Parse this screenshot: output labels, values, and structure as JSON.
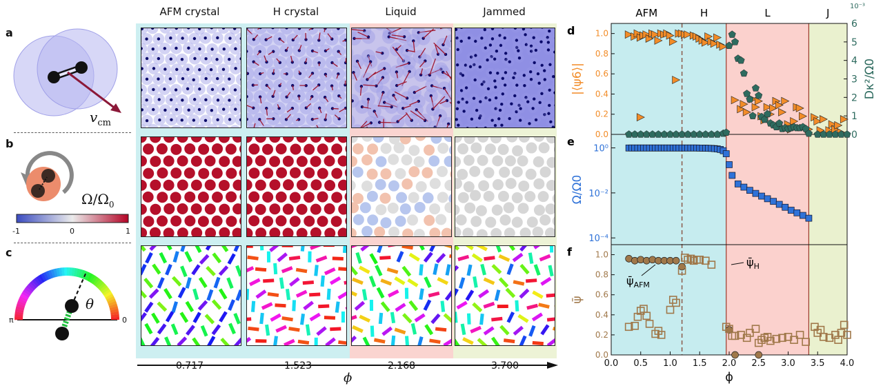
{
  "left_panels": {
    "a": {
      "letter": "a",
      "vcm_label": "v",
      "vcm_sub": "cm"
    },
    "b": {
      "letter": "b",
      "omega_label": "Ω/Ω",
      "omega_sub": "0",
      "colorbar_ticks": [
        "-1",
        "0",
        "1"
      ]
    },
    "c": {
      "letter": "c",
      "theta_label": "θ",
      "pi_label": "π",
      "zero_label": "0"
    }
  },
  "columns": [
    {
      "title": "AFM crystal",
      "phi": "0.717",
      "bg": "#cdeff1"
    },
    {
      "title": "H crystal",
      "phi": "1.523",
      "bg": "#cdeff1"
    },
    {
      "title": "Liquid",
      "phi": "2.168",
      "bg": "#fad4d0"
    },
    {
      "title": "Jammed",
      "phi": "3.700",
      "bg": "#edf3d6"
    }
  ],
  "phi_axis_label": "ϕ",
  "colors": {
    "afm_region": "#c6ecef",
    "h_region": "#c6ecef",
    "liquid_region": "#fbd1cd",
    "jammed_region": "#eaf1cf",
    "orange": "#f28c28",
    "teal": "#2e6b5f",
    "blue": "#2f72d8",
    "brown": "#a0784a",
    "dashed_line": "#8a5a4a",
    "boundary_line": "#9b3a2b"
  },
  "chart_data": [
    {
      "panel": "d",
      "type": "scatter",
      "regions": [
        "AFM",
        "H",
        "L",
        "J"
      ],
      "region_bounds": [
        [
          0,
          1.2
        ],
        [
          1.2,
          1.95
        ],
        [
          1.95,
          3.35
        ],
        [
          3.35,
          4.0
        ]
      ],
      "dashed_x": 1.2,
      "xlim": [
        0,
        4.0
      ],
      "ylim_left": [
        0,
        1.1
      ],
      "ylim_right": [
        0,
        6.0
      ],
      "ylabel_left": "|⟨ψ6⟩|",
      "ylabel_right": "Dκ²/Ω0",
      "right_exponent": "10⁻³",
      "yticks_left": [
        "0.0",
        "0.2",
        "0.4",
        "0.6",
        "0.8",
        "1.0"
      ],
      "yticks_right": [
        "0",
        "1",
        "2",
        "3",
        "4",
        "5",
        "6"
      ],
      "series": [
        {
          "marker": "triangle",
          "color": "orange",
          "points": [
            [
              0.3,
              0.99
            ],
            [
              0.4,
              0.97
            ],
            [
              0.45,
              1.0
            ],
            [
              0.5,
              0.96
            ],
            [
              0.55,
              0.98
            ],
            [
              0.6,
              0.99
            ],
            [
              0.65,
              0.95
            ],
            [
              0.7,
              1.0
            ],
            [
              0.75,
              0.99
            ],
            [
              0.8,
              0.93
            ],
            [
              0.85,
              1.0
            ],
            [
              0.9,
              0.99
            ],
            [
              0.95,
              1.0
            ],
            [
              1.0,
              0.98
            ],
            [
              1.05,
              0.92
            ],
            [
              1.15,
              1.0
            ],
            [
              1.2,
              1.0
            ],
            [
              1.25,
              0.99
            ],
            [
              1.3,
              0.99
            ],
            [
              1.4,
              0.98
            ],
            [
              1.45,
              0.97
            ],
            [
              1.5,
              0.95
            ],
            [
              1.55,
              0.93
            ],
            [
              1.6,
              0.91
            ],
            [
              1.65,
              0.97
            ],
            [
              1.7,
              0.92
            ],
            [
              1.75,
              0.9
            ],
            [
              1.8,
              0.96
            ],
            [
              1.85,
              0.89
            ],
            [
              1.9,
              0.87
            ],
            [
              1.1,
              0.54
            ],
            [
              0.5,
              0.17
            ],
            [
              2.1,
              0.34
            ],
            [
              2.2,
              0.25
            ],
            [
              2.25,
              0.3
            ],
            [
              2.3,
              0.22
            ],
            [
              2.4,
              0.35
            ],
            [
              2.45,
              0.27
            ],
            [
              2.5,
              0.33
            ],
            [
              2.55,
              0.18
            ],
            [
              2.6,
              0.14
            ],
            [
              2.65,
              0.27
            ],
            [
              2.7,
              0.2
            ],
            [
              2.75,
              0.26
            ],
            [
              2.8,
              0.33
            ],
            [
              2.85,
              0.29
            ],
            [
              2.9,
              0.22
            ],
            [
              2.95,
              0.33
            ],
            [
              3.0,
              0.1
            ],
            [
              3.05,
              0.05
            ],
            [
              3.1,
              0.13
            ],
            [
              3.15,
              0.27
            ],
            [
              3.2,
              0.26
            ],
            [
              3.25,
              0.18
            ],
            [
              3.35,
              0.05
            ],
            [
              3.45,
              0.17
            ],
            [
              3.5,
              0.13
            ],
            [
              3.55,
              0.04
            ],
            [
              3.6,
              0.15
            ],
            [
              3.7,
              0.04
            ],
            [
              3.75,
              0.1
            ],
            [
              3.8,
              0.05
            ],
            [
              3.85,
              0.09
            ],
            [
              3.9,
              0.02
            ],
            [
              3.95,
              0.15
            ]
          ]
        },
        {
          "marker": "pentagon",
          "color": "teal",
          "axis": "right",
          "points": [
            [
              0.3,
              0.0
            ],
            [
              0.4,
              0.0
            ],
            [
              0.5,
              0.0
            ],
            [
              0.6,
              0.0
            ],
            [
              0.7,
              0.0
            ],
            [
              0.8,
              0.0
            ],
            [
              0.9,
              0.0
            ],
            [
              1.0,
              0.0
            ],
            [
              1.1,
              0.0
            ],
            [
              1.2,
              0.0
            ],
            [
              1.3,
              0.0
            ],
            [
              1.4,
              0.0
            ],
            [
              1.5,
              0.0
            ],
            [
              1.6,
              0.0
            ],
            [
              1.7,
              0.0
            ],
            [
              1.8,
              0.0
            ],
            [
              1.9,
              0.05
            ],
            [
              1.95,
              0.1
            ],
            [
              2.0,
              4.8
            ],
            [
              2.05,
              5.4
            ],
            [
              2.1,
              5.0
            ],
            [
              2.15,
              4.1
            ],
            [
              2.2,
              4.0
            ],
            [
              2.25,
              3.3
            ],
            [
              2.3,
              2.2
            ],
            [
              2.35,
              1.9
            ],
            [
              2.4,
              1.0
            ],
            [
              2.45,
              2.5
            ],
            [
              2.5,
              2.1
            ],
            [
              2.55,
              0.95
            ],
            [
              2.6,
              0.8
            ],
            [
              2.65,
              1.1
            ],
            [
              2.7,
              0.6
            ],
            [
              2.75,
              0.5
            ],
            [
              2.8,
              0.4
            ],
            [
              2.85,
              0.6
            ],
            [
              2.9,
              0.3
            ],
            [
              2.95,
              0.35
            ],
            [
              3.0,
              0.3
            ],
            [
              3.05,
              0.35
            ],
            [
              3.1,
              0.4
            ],
            [
              3.15,
              0.35
            ],
            [
              3.2,
              0.35
            ],
            [
              3.25,
              0.4
            ],
            [
              3.3,
              0.3
            ],
            [
              3.35,
              0.05
            ],
            [
              3.5,
              0.0
            ],
            [
              3.6,
              0.0
            ],
            [
              3.7,
              0.0
            ],
            [
              3.8,
              0.0
            ],
            [
              3.9,
              0.0
            ],
            [
              4.0,
              0.0
            ]
          ]
        }
      ]
    },
    {
      "panel": "e",
      "type": "scatter",
      "xlim": [
        0,
        4.0
      ],
      "ylabel": "Ω/Ω0",
      "yscale": "log",
      "yticks": [
        "10⁰",
        "10⁻²",
        "10⁻⁴"
      ],
      "series": [
        {
          "marker": "square",
          "color": "blue",
          "points": [
            [
              0.3,
              0.99
            ],
            [
              0.35,
              0.99
            ],
            [
              0.4,
              0.99
            ],
            [
              0.45,
              0.99
            ],
            [
              0.5,
              0.99
            ],
            [
              0.55,
              0.99
            ],
            [
              0.6,
              0.99
            ],
            [
              0.65,
              0.99
            ],
            [
              0.7,
              0.99
            ],
            [
              0.75,
              0.99
            ],
            [
              0.8,
              0.99
            ],
            [
              0.85,
              0.99
            ],
            [
              0.9,
              0.99
            ],
            [
              0.95,
              0.99
            ],
            [
              1.0,
              0.99
            ],
            [
              1.05,
              0.99
            ],
            [
              1.1,
              0.99
            ],
            [
              1.15,
              0.99
            ],
            [
              1.2,
              0.99
            ],
            [
              1.25,
              0.99
            ],
            [
              1.3,
              0.99
            ],
            [
              1.35,
              0.99
            ],
            [
              1.4,
              0.99
            ],
            [
              1.45,
              0.99
            ],
            [
              1.5,
              0.98
            ],
            [
              1.55,
              0.98
            ],
            [
              1.6,
              0.97
            ],
            [
              1.65,
              0.96
            ],
            [
              1.7,
              0.95
            ],
            [
              1.75,
              0.93
            ],
            [
              1.8,
              0.9
            ],
            [
              1.85,
              0.85
            ],
            [
              1.9,
              0.75
            ],
            [
              1.95,
              0.55
            ],
            [
              2.0,
              0.18
            ],
            [
              2.05,
              0.06
            ],
            [
              2.15,
              0.025
            ],
            [
              2.25,
              0.018
            ],
            [
              2.35,
              0.013
            ],
            [
              2.45,
              0.0095
            ],
            [
              2.55,
              0.0072
            ],
            [
              2.65,
              0.0055
            ],
            [
              2.75,
              0.0042
            ],
            [
              2.85,
              0.0031
            ],
            [
              2.95,
              0.0023
            ],
            [
              3.05,
              0.0017
            ],
            [
              3.15,
              0.0013
            ],
            [
              3.25,
              0.001
            ],
            [
              3.35,
              0.00075
            ]
          ]
        }
      ]
    },
    {
      "panel": "f",
      "type": "scatter",
      "xlim": [
        0,
        4.0
      ],
      "ylim": [
        0,
        1.1
      ],
      "xlabel": "ϕ",
      "ylabel": "ψ̄",
      "xticks": [
        "0.0",
        "0.5",
        "1.0",
        "1.5",
        "2.0",
        "2.5",
        "3.0",
        "3.5",
        "4.0"
      ],
      "yticks": [
        "0.0",
        "0.2",
        "0.4",
        "0.6",
        "0.8",
        "1.0"
      ],
      "annotations": [
        {
          "text": "ψ̄",
          "sub": "AFM"
        },
        {
          "text": "ψ̄",
          "sub": "H"
        }
      ],
      "series": [
        {
          "marker": "circle",
          "color": "brown",
          "points": [
            [
              0.3,
              0.96
            ],
            [
              0.4,
              0.94
            ],
            [
              0.5,
              0.95
            ],
            [
              0.6,
              0.94
            ],
            [
              0.7,
              0.95
            ],
            [
              0.8,
              0.94
            ],
            [
              0.9,
              0.94
            ],
            [
              1.0,
              0.94
            ],
            [
              1.1,
              0.94
            ],
            [
              1.2,
              0.88
            ],
            [
              2.0,
              0.25
            ],
            [
              2.1,
              0.0
            ],
            [
              2.5,
              0.0
            ]
          ]
        },
        {
          "marker": "open-square",
          "color": "brown",
          "points": [
            [
              1.2,
              0.84
            ],
            [
              1.25,
              0.97
            ],
            [
              1.3,
              0.95
            ],
            [
              1.35,
              0.96
            ],
            [
              1.4,
              0.94
            ],
            [
              1.45,
              0.95
            ],
            [
              1.5,
              0.95
            ],
            [
              1.6,
              0.94
            ],
            [
              1.7,
              0.9
            ],
            [
              0.3,
              0.28
            ],
            [
              0.4,
              0.29
            ],
            [
              0.45,
              0.38
            ],
            [
              0.5,
              0.44
            ],
            [
              0.55,
              0.46
            ],
            [
              0.6,
              0.39
            ],
            [
              0.65,
              0.31
            ],
            [
              0.75,
              0.21
            ],
            [
              0.8,
              0.24
            ],
            [
              0.85,
              0.2
            ],
            [
              1.0,
              0.45
            ],
            [
              1.05,
              0.55
            ],
            [
              1.1,
              0.52
            ],
            [
              1.95,
              0.28
            ],
            [
              2.0,
              0.26
            ],
            [
              2.05,
              0.19
            ],
            [
              2.1,
              0.19
            ],
            [
              2.2,
              0.2
            ],
            [
              2.3,
              0.17
            ],
            [
              2.35,
              0.22
            ],
            [
              2.45,
              0.26
            ],
            [
              2.5,
              0.12
            ],
            [
              2.55,
              0.15
            ],
            [
              2.6,
              0.17
            ],
            [
              2.65,
              0.18
            ],
            [
              2.7,
              0.14
            ],
            [
              2.8,
              0.16
            ],
            [
              2.9,
              0.17
            ],
            [
              3.0,
              0.18
            ],
            [
              3.1,
              0.15
            ],
            [
              3.2,
              0.2
            ],
            [
              3.3,
              0.13
            ],
            [
              3.45,
              0.28
            ],
            [
              3.5,
              0.22
            ],
            [
              3.55,
              0.25
            ],
            [
              3.6,
              0.18
            ],
            [
              3.7,
              0.17
            ],
            [
              3.8,
              0.2
            ],
            [
              3.85,
              0.15
            ],
            [
              3.9,
              0.22
            ],
            [
              3.95,
              0.3
            ],
            [
              4.0,
              0.2
            ]
          ]
        }
      ]
    }
  ]
}
